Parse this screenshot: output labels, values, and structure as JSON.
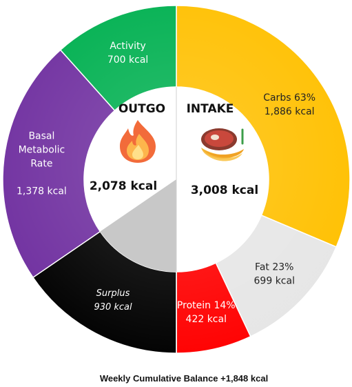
{
  "chart_data": {
    "type": "donut",
    "title": "",
    "footer": "Weekly Cumulative Balance +1,848 kcal",
    "intake": {
      "heading": "INTAKE",
      "total_label": "3,008 kcal",
      "total": 3008,
      "icon": "meat-banana-icon",
      "segments": [
        {
          "name": "Carbs",
          "label_lines": [
            "Carbs 63%",
            "1,886 kcal"
          ],
          "value": 1886,
          "percent": 63,
          "color": "#FFC000",
          "text_color": "#222222"
        },
        {
          "name": "Fat",
          "label_lines": [
            "Fat 23%",
            "699 kcal"
          ],
          "value": 699,
          "percent": 23,
          "color": "#E6E6E6",
          "text_color": "#222222"
        },
        {
          "name": "Protein",
          "label_lines": [
            "Protein 14%",
            "422 kcal"
          ],
          "value": 422,
          "percent": 14,
          "color": "#FF0000",
          "text_color": "#FFFFFF"
        }
      ]
    },
    "outgo": {
      "heading": "OUTGO",
      "total_label": "2,078 kcal",
      "total": 2078,
      "icon": "flame-icon",
      "segments": [
        {
          "name": "Surplus",
          "label_lines": [
            "Surplus",
            "930 kcal"
          ],
          "value": 930,
          "color": "#000000",
          "inner_color": "#C8C8C8",
          "text_color": "#FFFFFF",
          "italic": true
        },
        {
          "name": "Basal Metabolic Rate",
          "label_lines": [
            "Basal",
            "Metabolic",
            "Rate",
            "",
            "1,378 kcal"
          ],
          "value": 1378,
          "color": "#7030A0",
          "text_color": "#FFFFFF"
        },
        {
          "name": "Activity",
          "label_lines": [
            "Activity",
            "700 kcal"
          ],
          "value": 700,
          "color": "#00B050",
          "text_color": "#FFFFFF"
        }
      ]
    }
  }
}
